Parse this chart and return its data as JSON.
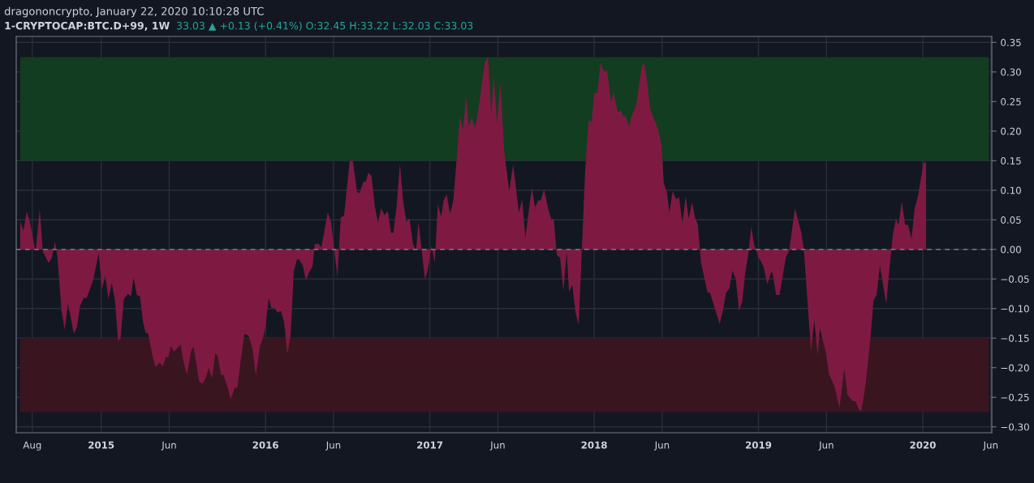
{
  "chart_data": {
    "type": "area",
    "title": "1-CRYPTOCAP:BTC.D+99, 1W",
    "subtitle": "33.03 ▲ +0.13 (+0.41%) O:32.45 H:33.22 L:32.03 C:33.03",
    "annotations": [
      "dragononcrypto, January 22, 2020 10:10:28 UTC"
    ],
    "x": [
      2014.507,
      2014.527,
      2014.547,
      2014.567,
      2014.601,
      2014.626,
      2014.645,
      2014.68,
      2014.7,
      2014.719,
      2014.734,
      2014.759,
      2014.778,
      2014.798,
      2014.833,
      2014.852,
      2014.872,
      2014.897,
      2014.911,
      2014.951,
      2014.985,
      2015.005,
      2015.025,
      2015.044,
      2015.064,
      2015.084,
      2015.103,
      2015.118,
      2015.138,
      2015.163,
      2015.182,
      2015.197,
      2015.217,
      2015.236,
      2015.256,
      2015.271,
      2015.286,
      2015.31,
      2015.33,
      2015.355,
      2015.374,
      2015.394,
      2015.409,
      2015.424,
      2015.443,
      2015.483,
      2015.502,
      2015.522,
      2015.547,
      2015.562,
      2015.596,
      2015.616,
      2015.635,
      2015.655,
      2015.675,
      2015.695,
      2015.709,
      2015.729,
      2015.744,
      2015.768,
      2015.788,
      2015.813,
      2015.828,
      2015.852,
      2015.872,
      2015.897,
      2015.921,
      2015.941,
      2015.966,
      2015.985,
      2016.0,
      2016.02,
      2016.034,
      2016.059,
      2016.074,
      2016.094,
      2016.113,
      2016.133,
      2016.153,
      2016.172,
      2016.192,
      2016.207,
      2016.227,
      2016.246,
      2016.266,
      2016.286,
      2016.3,
      2016.32,
      2016.34,
      2016.379,
      2016.399,
      2016.419,
      2016.438,
      2016.458,
      2016.478,
      2016.512,
      2016.532,
      2016.557,
      2016.571,
      2016.596,
      2016.611,
      2016.626,
      2016.645,
      2016.665,
      2016.685,
      2016.704,
      2016.724,
      2016.744,
      2016.764,
      2016.778,
      2016.798,
      2016.818,
      2016.837,
      2016.857,
      2016.877,
      2016.897,
      2016.916,
      2016.931,
      2016.97,
      2016.985,
      2017.01,
      2017.03,
      2017.049,
      2017.069,
      2017.084,
      2017.103,
      2017.123,
      2017.143,
      2017.163,
      2017.182,
      2017.202,
      2017.222,
      2017.236,
      2017.256,
      2017.276,
      2017.3,
      2017.335,
      2017.355,
      2017.374,
      2017.389,
      2017.409,
      2017.429,
      2017.453,
      2017.483,
      2017.507,
      2017.542,
      2017.562,
      2017.581,
      2017.621,
      2017.64,
      2017.66,
      2017.675,
      2017.695,
      2017.719,
      2017.739,
      2017.754,
      2017.773,
      2017.793,
      2017.813,
      2017.833,
      2017.847,
      2017.867,
      2017.887,
      2017.906,
      2017.926,
      2017.946,
      2017.966,
      2017.985,
      2018.0,
      2018.02,
      2018.039,
      2018.059,
      2018.079,
      2018.103,
      2018.118,
      2018.143,
      2018.163,
      2018.177,
      2018.192,
      2018.212,
      2018.227,
      2018.256,
      2018.291,
      2018.305,
      2018.325,
      2018.34,
      2018.389,
      2018.409,
      2018.424,
      2018.443,
      2018.458,
      2018.478,
      2018.498,
      2018.517,
      2018.537,
      2018.557,
      2018.576,
      2018.596,
      2018.616,
      2018.631,
      2018.65,
      2018.69,
      2018.704,
      2018.764,
      2018.783,
      2018.803,
      2018.823,
      2018.842,
      2018.862,
      2018.882,
      2018.901,
      2018.921,
      2018.936,
      2018.956,
      2018.975,
      2019.0,
      2019.03,
      2019.054,
      2019.074,
      2019.084,
      2019.108,
      2019.128,
      2019.167,
      2019.187,
      2019.222,
      2019.261,
      2019.276,
      2019.32,
      2019.34,
      2019.36,
      2019.374,
      2019.409,
      2019.429,
      2019.463,
      2019.493,
      2019.522,
      2019.542,
      2019.571,
      2019.591,
      2019.611,
      2019.626,
      2019.65,
      2019.68,
      2019.7,
      2019.719,
      2019.739,
      2019.764,
      2019.778,
      2019.793,
      2019.818,
      2019.837,
      2019.852,
      2019.872,
      2019.892,
      2019.911,
      2019.931,
      2019.951,
      2019.97,
      2020.005,
      2020.02
    ],
    "series": [
      {
        "color": "#7e1a42",
        "values": [
          0.048,
          0.032,
          0.064,
          0.046,
          -0.005,
          0.068,
          -0.004,
          -0.023,
          -0.014,
          0.013,
          -0.013,
          -0.104,
          -0.136,
          -0.091,
          -0.142,
          -0.132,
          -0.095,
          -0.081,
          -0.083,
          -0.052,
          -0.006,
          -0.068,
          -0.044,
          -0.084,
          -0.057,
          -0.086,
          -0.155,
          -0.15,
          -0.084,
          -0.075,
          -0.079,
          -0.047,
          -0.077,
          -0.079,
          -0.125,
          -0.141,
          -0.142,
          -0.177,
          -0.199,
          -0.191,
          -0.198,
          -0.182,
          -0.182,
          -0.163,
          -0.173,
          -0.161,
          -0.191,
          -0.212,
          -0.172,
          -0.164,
          -0.223,
          -0.227,
          -0.218,
          -0.2,
          -0.218,
          -0.175,
          -0.18,
          -0.212,
          -0.212,
          -0.232,
          -0.253,
          -0.234,
          -0.234,
          -0.182,
          -0.143,
          -0.146,
          -0.168,
          -0.213,
          -0.164,
          -0.15,
          -0.13,
          -0.082,
          -0.098,
          -0.1,
          -0.107,
          -0.104,
          -0.123,
          -0.177,
          -0.145,
          -0.038,
          -0.016,
          -0.018,
          -0.027,
          -0.052,
          -0.038,
          -0.029,
          0.009,
          0.01,
          0.003,
          0.063,
          0.046,
          -0.002,
          -0.047,
          0.054,
          0.057,
          0.149,
          0.15,
          0.097,
          0.095,
          0.114,
          0.115,
          0.13,
          0.124,
          0.073,
          0.045,
          0.07,
          0.058,
          0.065,
          0.028,
          0.028,
          0.073,
          0.145,
          0.083,
          0.047,
          0.052,
          0.01,
          -0.003,
          0.047,
          -0.05,
          -0.038,
          0.006,
          -0.022,
          0.077,
          0.055,
          0.083,
          0.093,
          0.06,
          0.083,
          0.151,
          0.224,
          0.203,
          0.259,
          0.208,
          0.223,
          0.205,
          0.246,
          0.317,
          0.325,
          0.228,
          0.295,
          0.212,
          0.284,
          0.165,
          0.099,
          0.144,
          0.062,
          0.085,
          0.02,
          0.105,
          0.071,
          0.083,
          0.083,
          0.102,
          0.07,
          0.051,
          0.051,
          -0.01,
          -0.014,
          -0.07,
          -0.003,
          -0.072,
          -0.06,
          -0.107,
          -0.128,
          0.005,
          0.137,
          0.218,
          0.216,
          0.264,
          0.265,
          0.316,
          0.301,
          0.302,
          0.249,
          0.266,
          0.232,
          0.235,
          0.225,
          0.225,
          0.208,
          0.225,
          0.244,
          0.311,
          0.314,
          0.28,
          0.238,
          0.203,
          0.178,
          0.112,
          0.096,
          0.062,
          0.099,
          0.085,
          0.088,
          0.044,
          0.09,
          0.052,
          0.08,
          0.051,
          0.042,
          -0.022,
          -0.073,
          -0.073,
          -0.126,
          -0.104,
          -0.073,
          -0.066,
          -0.036,
          -0.05,
          -0.104,
          -0.088,
          -0.036,
          -0.013,
          0.038,
          0.007,
          -0.013,
          -0.028,
          -0.059,
          -0.041,
          -0.038,
          -0.077,
          -0.077,
          -0.013,
          -0.002,
          0.07,
          0.028,
          0.0,
          -0.173,
          -0.12,
          -0.18,
          -0.134,
          -0.173,
          -0.21,
          -0.232,
          -0.268,
          -0.202,
          -0.246,
          -0.256,
          -0.257,
          -0.271,
          -0.273,
          -0.232,
          -0.155,
          -0.087,
          -0.077,
          -0.028,
          -0.07,
          -0.092,
          -0.045,
          0.026,
          0.051,
          0.041,
          0.082,
          0.042,
          0.041,
          0.018,
          0.07,
          0.089,
          0.147,
          0.147
        ]
      }
    ],
    "xlim": [
      2014.483,
      2020.42
    ],
    "xticks": [
      {
        "value": 2014.581,
        "label": "Aug"
      },
      {
        "value": 2015,
        "label": "2015"
      },
      {
        "value": 2015.414,
        "label": "Jun"
      },
      {
        "value": 2016,
        "label": "2016"
      },
      {
        "value": 2016.414,
        "label": "Jun"
      },
      {
        "value": 2017,
        "label": "2017"
      },
      {
        "value": 2017.414,
        "label": "Jun"
      },
      {
        "value": 2018,
        "label": "2018"
      },
      {
        "value": 2018.414,
        "label": "Jun"
      },
      {
        "value": 2019,
        "label": "2019"
      },
      {
        "value": 2019.414,
        "label": "Jun"
      },
      {
        "value": 2020,
        "label": "2020"
      },
      {
        "value": 2020.414,
        "label": "Jun"
      }
    ],
    "ylim": [
      -0.31,
      0.36
    ],
    "yticks": [
      {
        "value": 0.35,
        "label": "0.35"
      },
      {
        "value": 0.3,
        "label": "0.30"
      },
      {
        "value": 0.25,
        "label": "0.25"
      },
      {
        "value": 0.2,
        "label": "0.20"
      },
      {
        "value": 0.15,
        "label": "0.15"
      },
      {
        "value": 0.1,
        "label": "0.10"
      },
      {
        "value": 0.05,
        "label": "0.05"
      },
      {
        "value": 0,
        "label": "0.00"
      },
      {
        "value": -0.05,
        "label": "−0.05"
      },
      {
        "value": -0.1,
        "label": "−0.10"
      },
      {
        "value": -0.15,
        "label": "−0.15"
      },
      {
        "value": -0.2,
        "label": "−0.20"
      },
      {
        "value": -0.25,
        "label": "−0.25"
      },
      {
        "value": -0.3,
        "label": "−0.30"
      }
    ],
    "grid": true,
    "bands": [
      {
        "axis": "y",
        "from": 0.15,
        "to": 0.325,
        "color": "#123d20"
      },
      {
        "axis": "y",
        "from": -0.15,
        "to": -0.275,
        "color": "#391520"
      }
    ],
    "ref_lines": [
      {
        "axis": "y",
        "value": 0,
        "color": "#787b86",
        "line_style": "dashed"
      }
    ]
  }
}
